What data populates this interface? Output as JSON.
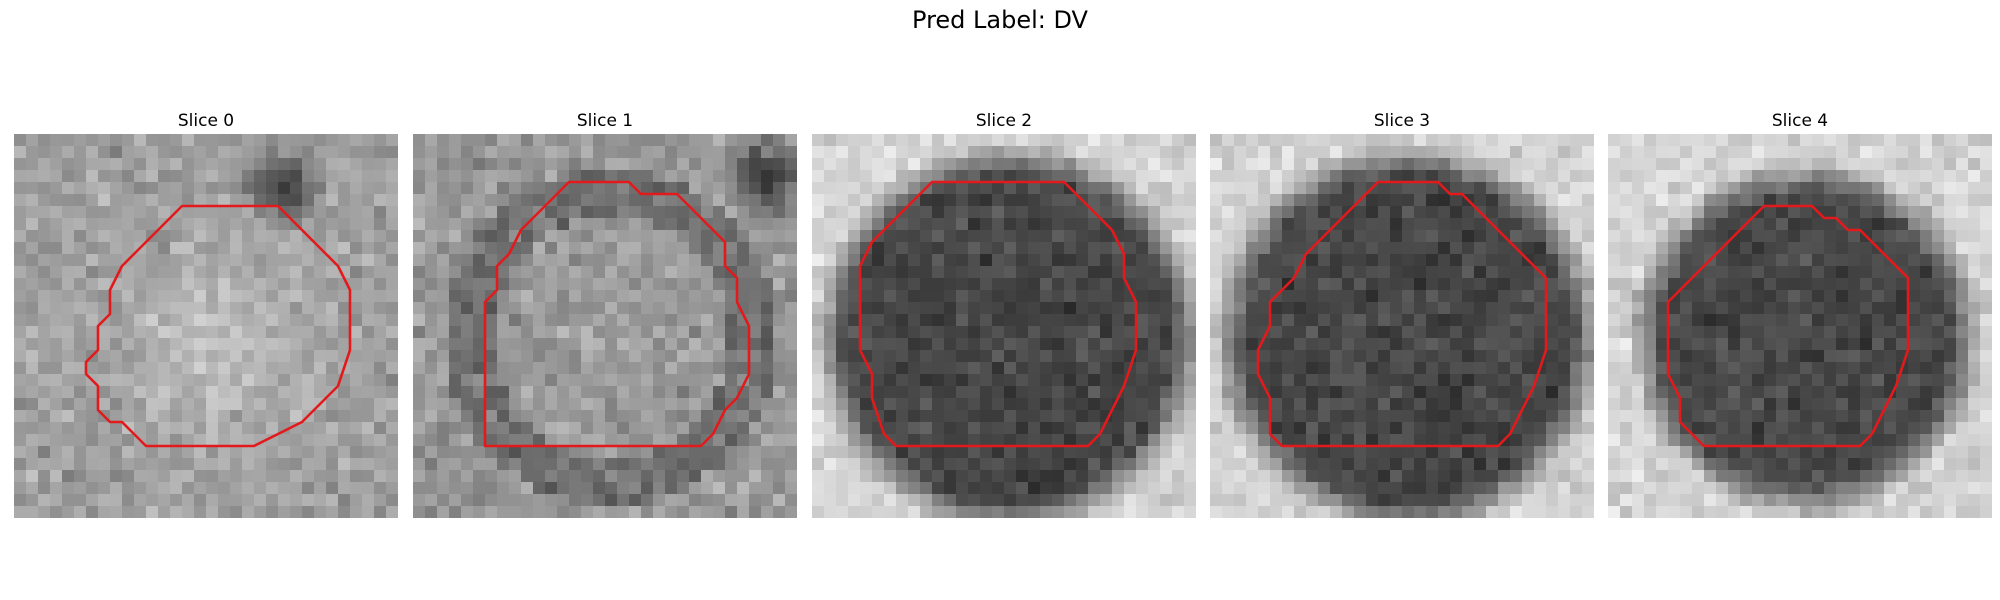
{
  "figure": {
    "suptitle": "Pred Label: DV"
  },
  "colors": {
    "contour": "#e31a1c",
    "background": "#ffffff"
  },
  "panels": [
    {
      "title": "Slice 0",
      "blob": "bright-center",
      "seed": 11,
      "contour": [
        [
          11,
          2
        ],
        [
          19,
          2
        ],
        [
          20,
          3
        ],
        [
          21,
          4
        ],
        [
          22,
          5
        ],
        [
          23,
          6
        ],
        [
          24,
          7
        ],
        [
          25,
          9
        ],
        [
          25,
          14
        ],
        [
          24,
          17
        ],
        [
          23,
          18
        ],
        [
          22,
          19
        ],
        [
          21,
          20
        ],
        [
          19,
          21
        ],
        [
          17,
          22
        ],
        [
          8,
          22
        ],
        [
          7,
          21
        ],
        [
          6,
          20
        ],
        [
          5,
          20
        ],
        [
          4,
          19
        ],
        [
          4,
          17
        ],
        [
          3,
          16
        ],
        [
          3,
          15
        ],
        [
          4,
          14
        ],
        [
          4,
          12
        ],
        [
          5,
          11
        ],
        [
          5,
          9
        ],
        [
          6,
          7
        ],
        [
          7,
          6
        ],
        [
          8,
          5
        ],
        [
          9,
          4
        ],
        [
          10,
          3
        ]
      ]
    },
    {
      "title": "Slice 1",
      "blob": "mixed",
      "seed": 23,
      "contour": [
        [
          10,
          0
        ],
        [
          15,
          0
        ],
        [
          16,
          1
        ],
        [
          19,
          1
        ],
        [
          20,
          2
        ],
        [
          21,
          3
        ],
        [
          22,
          4
        ],
        [
          23,
          5
        ],
        [
          23,
          7
        ],
        [
          24,
          8
        ],
        [
          24,
          10
        ],
        [
          25,
          12
        ],
        [
          25,
          16
        ],
        [
          24,
          18
        ],
        [
          23,
          19
        ],
        [
          22,
          21
        ],
        [
          21,
          22
        ],
        [
          3,
          22
        ],
        [
          3,
          21
        ],
        [
          3,
          19
        ],
        [
          3,
          10
        ],
        [
          4,
          9
        ],
        [
          4,
          7
        ],
        [
          5,
          6
        ],
        [
          6,
          4
        ],
        [
          7,
          3
        ],
        [
          8,
          2
        ],
        [
          9,
          1
        ]
      ]
    },
    {
      "title": "Slice 2",
      "blob": "dark-disc",
      "seed": 37,
      "contour": [
        [
          9,
          0
        ],
        [
          18,
          0
        ],
        [
          19,
          1
        ],
        [
          20,
          2
        ],
        [
          21,
          3
        ],
        [
          22,
          4
        ],
        [
          23,
          6
        ],
        [
          23,
          8
        ],
        [
          24,
          10
        ],
        [
          24,
          14
        ],
        [
          23,
          17
        ],
        [
          22,
          19
        ],
        [
          21,
          21
        ],
        [
          20,
          22
        ],
        [
          4,
          22
        ],
        [
          3,
          21
        ],
        [
          2,
          18
        ],
        [
          2,
          16
        ],
        [
          1,
          14
        ],
        [
          1,
          7
        ],
        [
          2,
          5
        ],
        [
          3,
          4
        ],
        [
          4,
          3
        ],
        [
          5,
          2
        ],
        [
          6,
          1
        ],
        [
          7,
          0
        ]
      ]
    },
    {
      "title": "Slice 3",
      "blob": "dark-disc",
      "seed": 53,
      "contour": [
        [
          11,
          0
        ],
        [
          16,
          0
        ],
        [
          17,
          1
        ],
        [
          18,
          1
        ],
        [
          19,
          2
        ],
        [
          20,
          3
        ],
        [
          21,
          4
        ],
        [
          22,
          5
        ],
        [
          23,
          6
        ],
        [
          24,
          7
        ],
        [
          25,
          8
        ],
        [
          25,
          14
        ],
        [
          24,
          17
        ],
        [
          23,
          19
        ],
        [
          22,
          21
        ],
        [
          21,
          22
        ],
        [
          3,
          22
        ],
        [
          2,
          21
        ],
        [
          2,
          18
        ],
        [
          1,
          16
        ],
        [
          1,
          14
        ],
        [
          2,
          12
        ],
        [
          2,
          10
        ],
        [
          3,
          9
        ],
        [
          4,
          8
        ],
        [
          5,
          6
        ],
        [
          6,
          5
        ],
        [
          7,
          4
        ],
        [
          8,
          3
        ],
        [
          9,
          2
        ],
        [
          10,
          1
        ]
      ]
    },
    {
      "title": "Slice 4",
      "blob": "dark-disc-small",
      "seed": 71,
      "contour": [
        [
          10,
          2
        ],
        [
          14,
          2
        ],
        [
          15,
          3
        ],
        [
          16,
          3
        ],
        [
          17,
          4
        ],
        [
          18,
          4
        ],
        [
          19,
          5
        ],
        [
          20,
          6
        ],
        [
          21,
          7
        ],
        [
          22,
          8
        ],
        [
          22,
          14
        ],
        [
          21,
          17
        ],
        [
          20,
          19
        ],
        [
          19,
          21
        ],
        [
          18,
          22
        ],
        [
          5,
          22
        ],
        [
          4,
          21
        ],
        [
          3,
          20
        ],
        [
          3,
          18
        ],
        [
          2,
          16
        ],
        [
          2,
          10
        ],
        [
          3,
          9
        ],
        [
          4,
          8
        ],
        [
          5,
          7
        ],
        [
          6,
          6
        ],
        [
          7,
          5
        ],
        [
          8,
          4
        ],
        [
          9,
          3
        ]
      ]
    }
  ]
}
